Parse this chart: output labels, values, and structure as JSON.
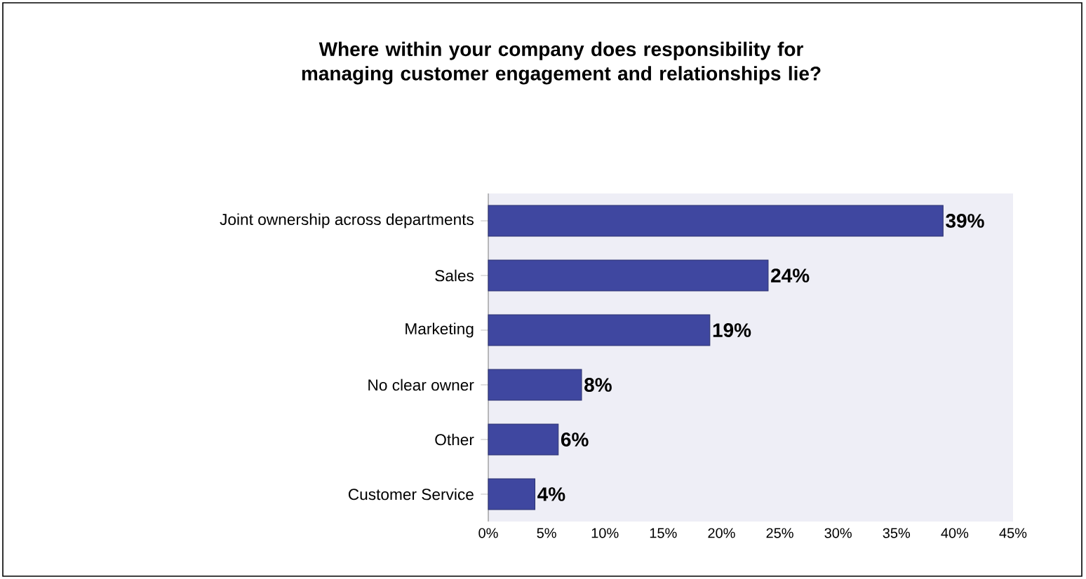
{
  "chart_data": {
    "type": "bar",
    "orientation": "horizontal",
    "title": "Where within your company does responsibility for managing customer engagement and relationships lie?",
    "categories": [
      "Joint ownership across  departments",
      "Sales",
      "Marketing",
      "No clear owner",
      "Other",
      "Customer Service"
    ],
    "values": [
      39,
      24,
      19,
      8,
      6,
      4
    ],
    "value_labels": [
      "39%",
      "24%",
      "19%",
      "8%",
      "6%",
      "4%"
    ],
    "color": "#3f47a0",
    "xlim": [
      0,
      45
    ],
    "xticks": [
      {
        "value": 0,
        "label": "0%"
      },
      {
        "value": 5,
        "label": "5%"
      },
      {
        "value": 10,
        "label": "10%"
      },
      {
        "value": 15,
        "label": "15%"
      },
      {
        "value": 20,
        "label": "20%"
      },
      {
        "value": 25,
        "label": "25%"
      },
      {
        "value": 30,
        "label": "30%"
      },
      {
        "value": 35,
        "label": "35%"
      },
      {
        "value": 40,
        "label": "40%"
      },
      {
        "value": 45,
        "label": "45%"
      }
    ]
  }
}
